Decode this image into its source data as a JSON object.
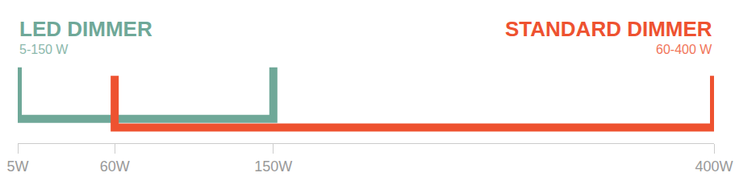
{
  "chart_data": {
    "type": "range",
    "series": [
      {
        "name": "LED DIMMER",
        "annotation": "5-150 W",
        "color": "#6fa898",
        "values": [
          5,
          150
        ]
      },
      {
        "name": "STANDARD DIMMER",
        "annotation": "60-400 W",
        "color": "#ee5230",
        "values": [
          60,
          400
        ]
      }
    ],
    "xlim": [
      5,
      400
    ],
    "xticks": [
      {
        "value": 5,
        "label": "5W"
      },
      {
        "value": 60,
        "label": "60W"
      },
      {
        "value": 150,
        "label": "150W"
      },
      {
        "value": 400,
        "label": "400W"
      }
    ],
    "grid": false
  }
}
